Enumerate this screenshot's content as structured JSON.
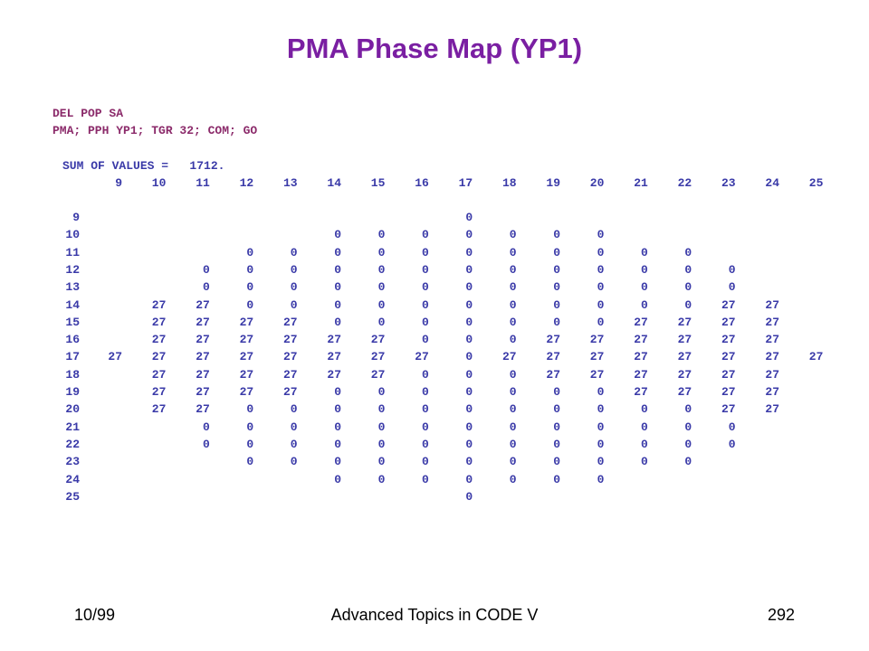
{
  "header": {
    "title": "PMA Phase Map (YP1)"
  },
  "commands": [
    "DEL POP SA",
    "PMA; PPH YP1; TGR 32; COM; GO"
  ],
  "summary": "SUM OF VALUES =   1712.",
  "table": {
    "columns": [
      9,
      10,
      11,
      12,
      13,
      14,
      15,
      16,
      17,
      18,
      19,
      20,
      21,
      22,
      23,
      24,
      25
    ],
    "rows": [
      {
        "label": 9,
        "cells": [
          null,
          null,
          null,
          null,
          null,
          null,
          null,
          null,
          0,
          null,
          null,
          null,
          null,
          null,
          null,
          null,
          null
        ]
      },
      {
        "label": 10,
        "cells": [
          null,
          null,
          null,
          null,
          null,
          0,
          0,
          0,
          0,
          0,
          0,
          0,
          null,
          null,
          null,
          null,
          null
        ]
      },
      {
        "label": 11,
        "cells": [
          null,
          null,
          null,
          0,
          0,
          0,
          0,
          0,
          0,
          0,
          0,
          0,
          0,
          0,
          null,
          null,
          null
        ]
      },
      {
        "label": 12,
        "cells": [
          null,
          null,
          0,
          0,
          0,
          0,
          0,
          0,
          0,
          0,
          0,
          0,
          0,
          0,
          0,
          null,
          null
        ]
      },
      {
        "label": 13,
        "cells": [
          null,
          null,
          0,
          0,
          0,
          0,
          0,
          0,
          0,
          0,
          0,
          0,
          0,
          0,
          0,
          null,
          null
        ]
      },
      {
        "label": 14,
        "cells": [
          null,
          27,
          27,
          0,
          0,
          0,
          0,
          0,
          0,
          0,
          0,
          0,
          0,
          0,
          27,
          27,
          null
        ]
      },
      {
        "label": 15,
        "cells": [
          null,
          27,
          27,
          27,
          27,
          0,
          0,
          0,
          0,
          0,
          0,
          0,
          27,
          27,
          27,
          27,
          null
        ]
      },
      {
        "label": 16,
        "cells": [
          null,
          27,
          27,
          27,
          27,
          27,
          27,
          0,
          0,
          0,
          27,
          27,
          27,
          27,
          27,
          27,
          null
        ]
      },
      {
        "label": 17,
        "cells": [
          27,
          27,
          27,
          27,
          27,
          27,
          27,
          27,
          0,
          27,
          27,
          27,
          27,
          27,
          27,
          27,
          27
        ]
      },
      {
        "label": 18,
        "cells": [
          null,
          27,
          27,
          27,
          27,
          27,
          27,
          0,
          0,
          0,
          27,
          27,
          27,
          27,
          27,
          27,
          null
        ]
      },
      {
        "label": 19,
        "cells": [
          null,
          27,
          27,
          27,
          27,
          0,
          0,
          0,
          0,
          0,
          0,
          0,
          27,
          27,
          27,
          27,
          null
        ]
      },
      {
        "label": 20,
        "cells": [
          null,
          27,
          27,
          0,
          0,
          0,
          0,
          0,
          0,
          0,
          0,
          0,
          0,
          0,
          27,
          27,
          null
        ]
      },
      {
        "label": 21,
        "cells": [
          null,
          null,
          0,
          0,
          0,
          0,
          0,
          0,
          0,
          0,
          0,
          0,
          0,
          0,
          0,
          null,
          null
        ]
      },
      {
        "label": 22,
        "cells": [
          null,
          null,
          0,
          0,
          0,
          0,
          0,
          0,
          0,
          0,
          0,
          0,
          0,
          0,
          0,
          null,
          null
        ]
      },
      {
        "label": 23,
        "cells": [
          null,
          null,
          null,
          0,
          0,
          0,
          0,
          0,
          0,
          0,
          0,
          0,
          0,
          0,
          null,
          null,
          null
        ]
      },
      {
        "label": 24,
        "cells": [
          null,
          null,
          null,
          null,
          null,
          0,
          0,
          0,
          0,
          0,
          0,
          0,
          null,
          null,
          null,
          null,
          null
        ]
      },
      {
        "label": 25,
        "cells": [
          null,
          null,
          null,
          null,
          null,
          null,
          null,
          null,
          0,
          null,
          null,
          null,
          null,
          null,
          null,
          null,
          null
        ]
      }
    ]
  },
  "footer": {
    "left": "10/99",
    "center": "Advanced Topics in CODE V",
    "right": "292"
  }
}
